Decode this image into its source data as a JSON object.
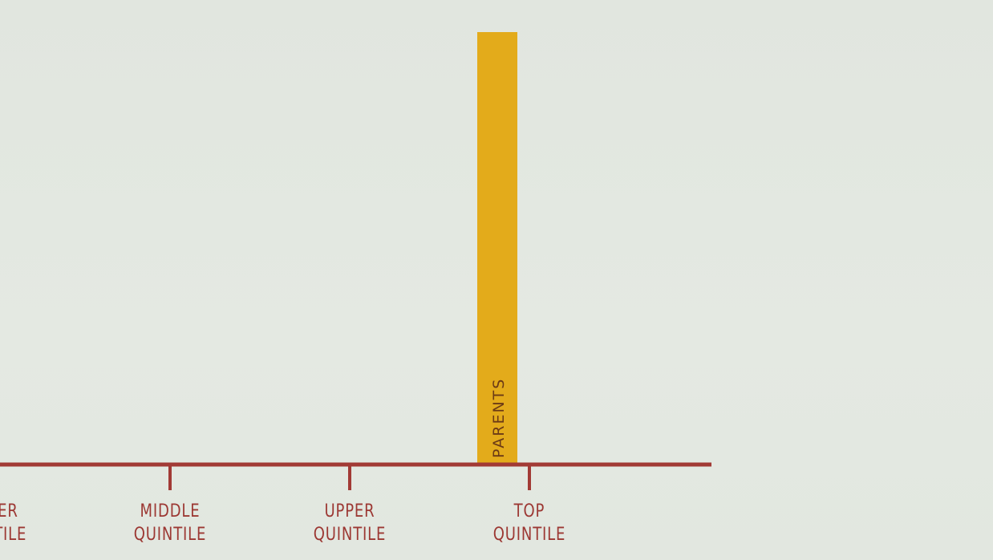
{
  "colors": {
    "axis": "#a23a35",
    "bar": "#e3ab1b",
    "bar_label": "#6b3a16",
    "tick_label": "#9c3833"
  },
  "chart_data": {
    "type": "bar",
    "title": "",
    "xlabel": "",
    "ylabel": "",
    "categories": [
      [
        "LOWER",
        "QUINTILE"
      ],
      [
        "MIDDLE",
        "QUINTILE"
      ],
      [
        "UPPER",
        "QUINTILE"
      ],
      [
        "TOP",
        "QUINTILE"
      ]
    ],
    "series": [
      {
        "name": "PARENTS",
        "values": [
          null,
          null,
          null,
          1.0
        ],
        "label": "PARENTS"
      }
    ],
    "ylim": [
      0,
      1
    ],
    "grid": false,
    "legend": "none"
  }
}
